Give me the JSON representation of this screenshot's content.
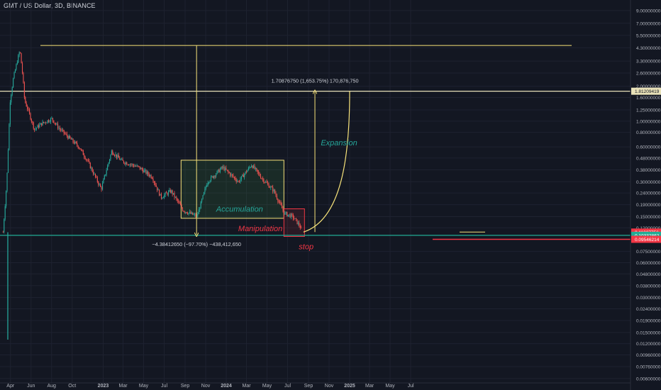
{
  "header": {
    "title": "GMT / US Dollar, 3D, BINANCE"
  },
  "colors": {
    "background": "#131722",
    "up": "#26a69a",
    "down": "#ef5350",
    "annotation_yellow": "#f7e37a",
    "teal_line": "#22ab94",
    "red_line": "#f23645",
    "white_line": "#e8e1b8",
    "axis_text": "#b2b5be"
  },
  "annotations": {
    "drop_measure": "−4.38412650 (−97.70%) −438,412,650",
    "rise_measure": "1.70876750 (1,653.75%) 170,876,750",
    "accumulation": "Accumulation",
    "manipulation": "Manipulation",
    "expansion": "Expansion",
    "stop": "stop"
  },
  "price_tags": {
    "white": "1.81209419",
    "current": "0.11027756",
    "teal": "0.10332862",
    "red": "0.09546214"
  },
  "chart_data": {
    "type": "candlestick",
    "title": "GMT / US Dollar, 3D, BINANCE",
    "y_scale": "log",
    "ylim": [
      0.0055,
      10.5
    ],
    "x_tick_labels": [
      "Apr",
      "Jun",
      "Aug",
      "Oct",
      "2023",
      "Mar",
      "May",
      "Jul",
      "Sep",
      "Nov",
      "2024",
      "Mar",
      "May",
      "Jul",
      "Sep",
      "Nov",
      "2025",
      "Mar",
      "May",
      "Jul"
    ],
    "y_tick_labels": [
      "9.00000000",
      "7.00000000",
      "5.50000000",
      "4.30000000",
      "3.30000000",
      "2.60000000",
      "2.00000000",
      "1.60000000",
      "1.25000000",
      "1.00000000",
      "0.80000000",
      "0.60000000",
      "0.48000000",
      "0.38000000",
      "0.30000000",
      "0.24000000",
      "0.19000000",
      "0.15000000",
      "0.12000000",
      "0.07500000",
      "0.06000000",
      "0.04800000",
      "0.03800000",
      "0.03000000",
      "0.02400000",
      "0.01900000",
      "0.01500000",
      "0.01200000",
      "0.00960000",
      "0.00760000",
      "0.00600000"
    ],
    "price_path": [
      {
        "date": "2022-03-09",
        "close": 0.11
      },
      {
        "date": "2022-03-20",
        "close": 0.3
      },
      {
        "date": "2022-03-30",
        "close": 1.5
      },
      {
        "date": "2022-04-08",
        "close": 2.3
      },
      {
        "date": "2022-04-20",
        "close": 3.3
      },
      {
        "date": "2022-04-28",
        "close": 4.1
      },
      {
        "date": "2022-05-06",
        "close": 2.5
      },
      {
        "date": "2022-05-12",
        "close": 1.5
      },
      {
        "date": "2022-05-20",
        "close": 1.3
      },
      {
        "date": "2022-06-10",
        "close": 0.85
      },
      {
        "date": "2022-07-01",
        "close": 0.95
      },
      {
        "date": "2022-08-01",
        "close": 1.05
      },
      {
        "date": "2022-08-20",
        "close": 0.88
      },
      {
        "date": "2022-09-20",
        "close": 0.72
      },
      {
        "date": "2022-10-20",
        "close": 0.6
      },
      {
        "date": "2022-11-15",
        "close": 0.45
      },
      {
        "date": "2022-12-25",
        "close": 0.26
      },
      {
        "date": "2023-01-25",
        "close": 0.55
      },
      {
        "date": "2023-02-25",
        "close": 0.45
      },
      {
        "date": "2023-04-15",
        "close": 0.4
      },
      {
        "date": "2023-05-25",
        "close": 0.33
      },
      {
        "date": "2023-06-20",
        "close": 0.22
      },
      {
        "date": "2023-07-20",
        "close": 0.25
      },
      {
        "date": "2023-08-25",
        "close": 0.17
      },
      {
        "date": "2023-10-05",
        "close": 0.15
      },
      {
        "date": "2023-11-05",
        "close": 0.3
      },
      {
        "date": "2023-12-20",
        "close": 0.4
      },
      {
        "date": "2024-02-05",
        "close": 0.3
      },
      {
        "date": "2024-03-15",
        "close": 0.42
      },
      {
        "date": "2024-04-15",
        "close": 0.32
      },
      {
        "date": "2024-05-20",
        "close": 0.25
      },
      {
        "date": "2024-06-20",
        "close": 0.16
      },
      {
        "date": "2024-07-15",
        "close": 0.15
      },
      {
        "date": "2024-08-05",
        "close": 0.125
      },
      {
        "date": "2024-08-12",
        "close": 0.11
      }
    ],
    "levels": {
      "top": 4.5,
      "white": 1.81209419,
      "current": 0.11027756,
      "teal": 0.10332862,
      "stop": 0.09546214
    },
    "zones": {
      "accumulation": {
        "start": "2023-08-20",
        "end": "2024-06-20",
        "high": 0.46,
        "low": 0.145
      },
      "manipulation": {
        "start": "2024-06-20",
        "end": "2024-08-20",
        "high": 0.175,
        "low": 0.101
      }
    }
  }
}
